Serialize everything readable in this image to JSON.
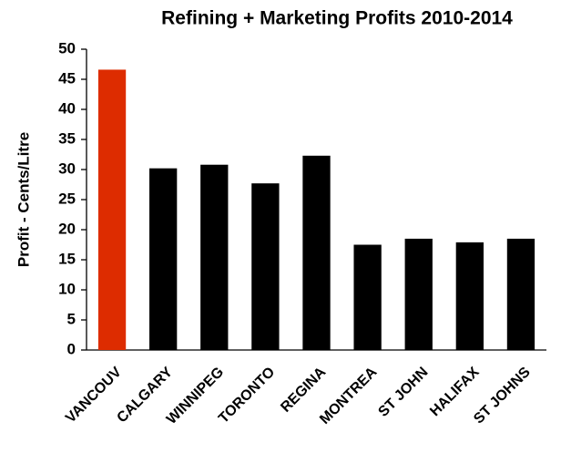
{
  "chart_data": {
    "type": "bar",
    "title": "Refining + Marketing Profits 2010-2014",
    "y_label": "Profit - Cents/Litre",
    "categories": [
      "VANCOUV",
      "CALGARY",
      "WINNIPEG",
      "TORONTO",
      "REGINA",
      "MONTREA",
      "ST JOHN",
      "HALIFAX",
      "ST JOHNS"
    ],
    "values": [
      46.6,
      30.2,
      30.8,
      27.7,
      32.3,
      17.5,
      18.5,
      17.9,
      18.5
    ],
    "colors": [
      "#dd2c00",
      "#000000",
      "#000000",
      "#000000",
      "#000000",
      "#000000",
      "#000000",
      "#000000",
      "#000000"
    ],
    "ylim": [
      0,
      50
    ],
    "yticks": [
      0,
      5,
      10,
      15,
      20,
      25,
      30,
      35,
      40,
      45,
      50
    ],
    "grid": false
  }
}
